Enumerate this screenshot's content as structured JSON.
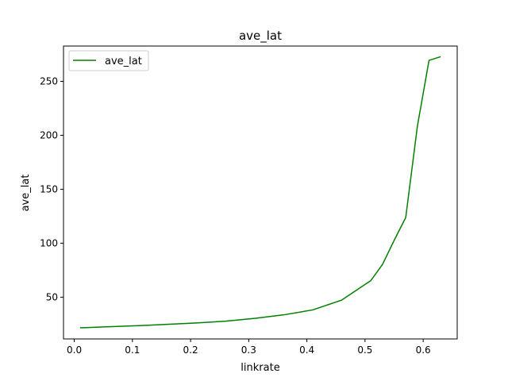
{
  "chart_data": {
    "type": "line",
    "title": "ave_lat",
    "xlabel": "linkrate",
    "ylabel": "ave_lat",
    "xlim": [
      -0.0185,
      0.6585
    ],
    "ylim": [
      11.3,
      282.7
    ],
    "xticks": [
      0.0,
      0.1,
      0.2,
      0.3,
      0.4,
      0.5,
      0.6
    ],
    "xtick_labels": [
      "0.0",
      "0.1",
      "0.2",
      "0.3",
      "0.4",
      "0.5",
      "0.6"
    ],
    "yticks": [
      50,
      100,
      150,
      200,
      250
    ],
    "ytick_labels": [
      "50",
      "100",
      "150",
      "200",
      "250"
    ],
    "grid": false,
    "legend": {
      "position": "upper left"
    },
    "series": [
      {
        "name": "ave_lat",
        "color": "#008000",
        "x": [
          0.01,
          0.06,
          0.12,
          0.21,
          0.26,
          0.31,
          0.36,
          0.41,
          0.46,
          0.51,
          0.53,
          0.55,
          0.57,
          0.59,
          0.61,
          0.63
        ],
        "y": [
          21.6,
          22.6,
          23.8,
          26.1,
          27.8,
          30.3,
          33.6,
          38.2,
          47.3,
          65.4,
          80.3,
          102.5,
          123.8,
          208.2,
          269.4,
          272.8
        ]
      }
    ]
  }
}
